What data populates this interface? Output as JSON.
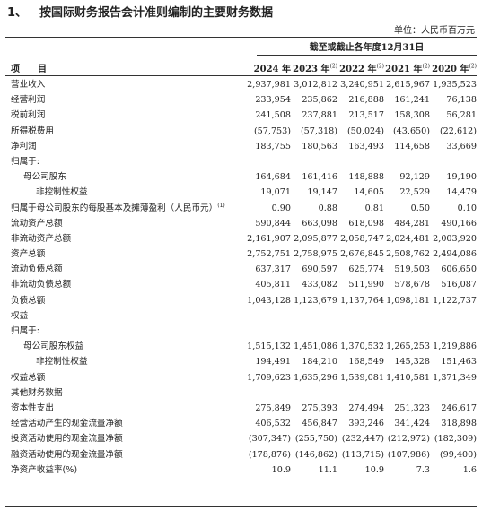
{
  "header": {
    "section_number": "1、",
    "title": "按国际财务报告会计准则编制的主要财务数据",
    "unit": "单位：人民币百万元",
    "period_caption": "截至或截止各年度12月31日"
  },
  "columns": {
    "item_label": "项　　目",
    "years": [
      {
        "label": "2024 年",
        "note": ""
      },
      {
        "label": "2023 年",
        "note": "(2)"
      },
      {
        "label": "2022 年",
        "note": "(2)"
      },
      {
        "label": "2021 年",
        "note": "(2)"
      },
      {
        "label": "2020 年",
        "note": "(2)"
      }
    ]
  },
  "rows": [
    {
      "label": "营业收入",
      "indent": 0,
      "values": [
        "2,937,981",
        "3,012,812",
        "3,240,951",
        "2,615,967",
        "1,935,523"
      ]
    },
    {
      "label": "经营利润",
      "indent": 0,
      "values": [
        "233,954",
        "235,862",
        "216,888",
        "161,241",
        "76,138"
      ]
    },
    {
      "label": "税前利润",
      "indent": 0,
      "values": [
        "241,508",
        "237,881",
        "213,517",
        "158,308",
        "56,281"
      ]
    },
    {
      "label": "所得税费用",
      "indent": 0,
      "values": [
        "(57,753)",
        "(57,318)",
        "(50,024)",
        "(43,650)",
        "(22,612)"
      ]
    },
    {
      "label": "净利润",
      "indent": 0,
      "values": [
        "183,755",
        "180,563",
        "163,493",
        "114,658",
        "33,669"
      ]
    },
    {
      "label": "归属于:",
      "indent": 0,
      "values": [
        "",
        "",
        "",
        "",
        ""
      ]
    },
    {
      "label": "母公司股东",
      "indent": 1,
      "values": [
        "164,684",
        "161,416",
        "148,888",
        "92,129",
        "19,190"
      ]
    },
    {
      "label": "非控制性权益",
      "indent": 2,
      "values": [
        "19,071",
        "19,147",
        "14,605",
        "22,529",
        "14,479"
      ]
    },
    {
      "label": "归属于母公司股东的每股基本及摊薄盈利（人民币元）",
      "note": "(1)",
      "indent": 0,
      "values": [
        "0.90",
        "0.88",
        "0.81",
        "0.50",
        "0.10"
      ]
    },
    {
      "label": "流动资产总额",
      "indent": 0,
      "values": [
        "590,844",
        "663,098",
        "618,098",
        "484,281",
        "490,166"
      ]
    },
    {
      "label": "非流动资产总额",
      "indent": 0,
      "values": [
        "2,161,907",
        "2,095,877",
        "2,058,747",
        "2,024,481",
        "2,003,920"
      ]
    },
    {
      "label": "资产总额",
      "indent": 0,
      "values": [
        "2,752,751",
        "2,758,975",
        "2,676,845",
        "2,508,762",
        "2,494,086"
      ]
    },
    {
      "label": "流动负债总额",
      "indent": 0,
      "values": [
        "637,317",
        "690,597",
        "625,774",
        "519,503",
        "606,650"
      ]
    },
    {
      "label": "非流动负债总额",
      "indent": 0,
      "values": [
        "405,811",
        "433,082",
        "511,990",
        "578,678",
        "516,087"
      ]
    },
    {
      "label": "负债总额",
      "indent": 0,
      "values": [
        "1,043,128",
        "1,123,679",
        "1,137,764",
        "1,098,181",
        "1,122,737"
      ]
    },
    {
      "label": "权益",
      "indent": 0,
      "values": [
        "",
        "",
        "",
        "",
        ""
      ]
    },
    {
      "label": "归属于:",
      "indent": 0,
      "values": [
        "",
        "",
        "",
        "",
        ""
      ]
    },
    {
      "label": "母公司股东权益",
      "indent": 1,
      "values": [
        "1,515,132",
        "1,451,086",
        "1,370,532",
        "1,265,253",
        "1,219,886"
      ]
    },
    {
      "label": "非控制性权益",
      "indent": 2,
      "values": [
        "194,491",
        "184,210",
        "168,549",
        "145,328",
        "151,463"
      ]
    },
    {
      "label": "权益总额",
      "indent": 0,
      "values": [
        "1,709,623",
        "1,635,296",
        "1,539,081",
        "1,410,581",
        "1,371,349"
      ]
    },
    {
      "label": "其他财务数据",
      "indent": 0,
      "values": [
        "",
        "",
        "",
        "",
        ""
      ]
    },
    {
      "label": "资本性支出",
      "indent": 0,
      "values": [
        "275,849",
        "275,393",
        "274,494",
        "251,323",
        "246,617"
      ]
    },
    {
      "label": "经营活动产生的现金流量净额",
      "indent": 0,
      "values": [
        "406,532",
        "456,847",
        "393,246",
        "341,424",
        "318,898"
      ]
    },
    {
      "label": "投资活动使用的现金流量净额",
      "indent": 0,
      "values": [
        "(307,347)",
        "(255,750)",
        "(232,447)",
        "(212,972)",
        "(182,309)"
      ]
    },
    {
      "label": "融资活动使用的现金流量净额",
      "indent": 0,
      "values": [
        "(178,876)",
        "(146,862)",
        "(113,715)",
        "(107,986)",
        "(99,400)"
      ]
    },
    {
      "label": "净资产收益率(%)",
      "indent": 0,
      "values": [
        "10.9",
        "11.1",
        "10.9",
        "7.3",
        "1.6"
      ]
    }
  ]
}
